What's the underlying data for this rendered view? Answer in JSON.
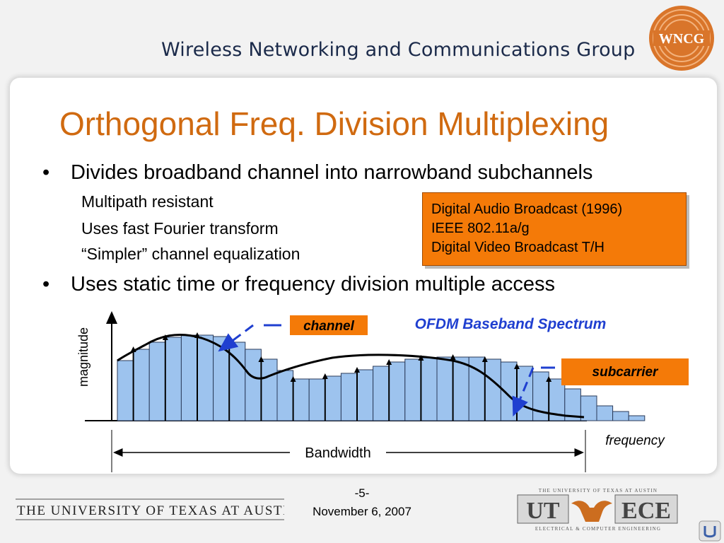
{
  "header": {
    "group_title": "Wireless Networking and Communications Group",
    "logo_text": "WNCG"
  },
  "slide": {
    "title": "Orthogonal Freq. Division Multiplexing",
    "bullets": [
      {
        "text": "Divides broadband channel into narrowband subchannels",
        "subs": [
          "Multipath resistant",
          "Uses fast Fourier transform",
          "“Simpler” channel equalization"
        ]
      },
      {
        "text": "Uses static time or frequency division multiple access"
      }
    ],
    "bullet_glyph": "•",
    "applications": [
      "Digital Audio Broadcast (1996)",
      "IEEE 802.11a/g",
      "Digital Video Broadcast T/H"
    ]
  },
  "diagram": {
    "ylabel": "magnitude",
    "xlabel": "frequency",
    "spectrum_title": "OFDM Baseband Spectrum",
    "channel_label": "channel",
    "subcarrier_label": "subcarrier",
    "bandwidth_label": "Bandwidth",
    "colors": {
      "bar_fill": "#9dc3ee",
      "orange": "#f47a08",
      "arrow_blue": "#1f3fd0",
      "title_blue": "#1f3fd0"
    }
  },
  "footer": {
    "university": "THE UNIVERSITY OF TEXAS AT AUSTIN",
    "page": "-5-",
    "date": "November 6, 2007",
    "ut_logo_top": "THE UNIVERSITY OF TEXAS AT AUSTIN",
    "ut_logo_left": "UT",
    "ut_logo_right": "ECE",
    "ut_logo_bottom": "ELECTRICAL & COMPUTER ENGINEERING"
  }
}
